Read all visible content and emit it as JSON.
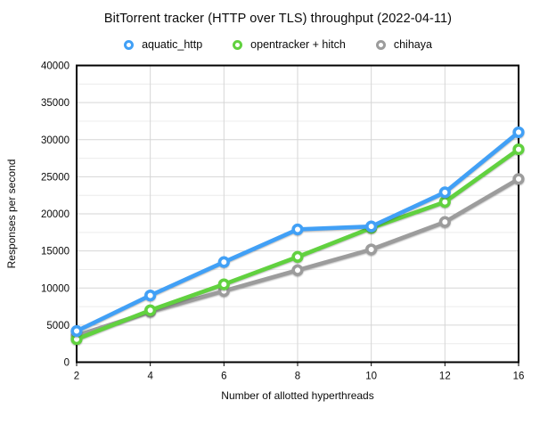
{
  "chart_data": {
    "type": "line",
    "title": "BitTorrent tracker (HTTP over TLS) throughput (2022-04-11)",
    "xlabel": "Number of allotted hyperthreads",
    "ylabel": "Responses per second",
    "categories": [
      "2",
      "4",
      "6",
      "8",
      "10",
      "12",
      "16"
    ],
    "ylim": [
      0,
      40000
    ],
    "ytick_step": 5000,
    "ytick_minor_step": 2500,
    "grid": true,
    "legend_position": "top",
    "marker_style": "open-circle",
    "series": [
      {
        "name": "aquatic_http",
        "color": "#41A0F6",
        "values": [
          4200,
          9000,
          13500,
          17900,
          18300,
          22900,
          31000
        ]
      },
      {
        "name": "opentracker + hitch",
        "color": "#61D13F",
        "values": [
          3100,
          7000,
          10500,
          14200,
          18100,
          21600,
          28700
        ]
      },
      {
        "name": "chihaya",
        "color": "#9C9C9C",
        "values": [
          3600,
          6800,
          9600,
          12400,
          15200,
          18900,
          24700
        ]
      }
    ],
    "colors": {
      "frame": "#000000",
      "grid_major": "#D6D6D6",
      "grid_minor": "#ECECEC",
      "background": "#FFFFFF"
    }
  }
}
